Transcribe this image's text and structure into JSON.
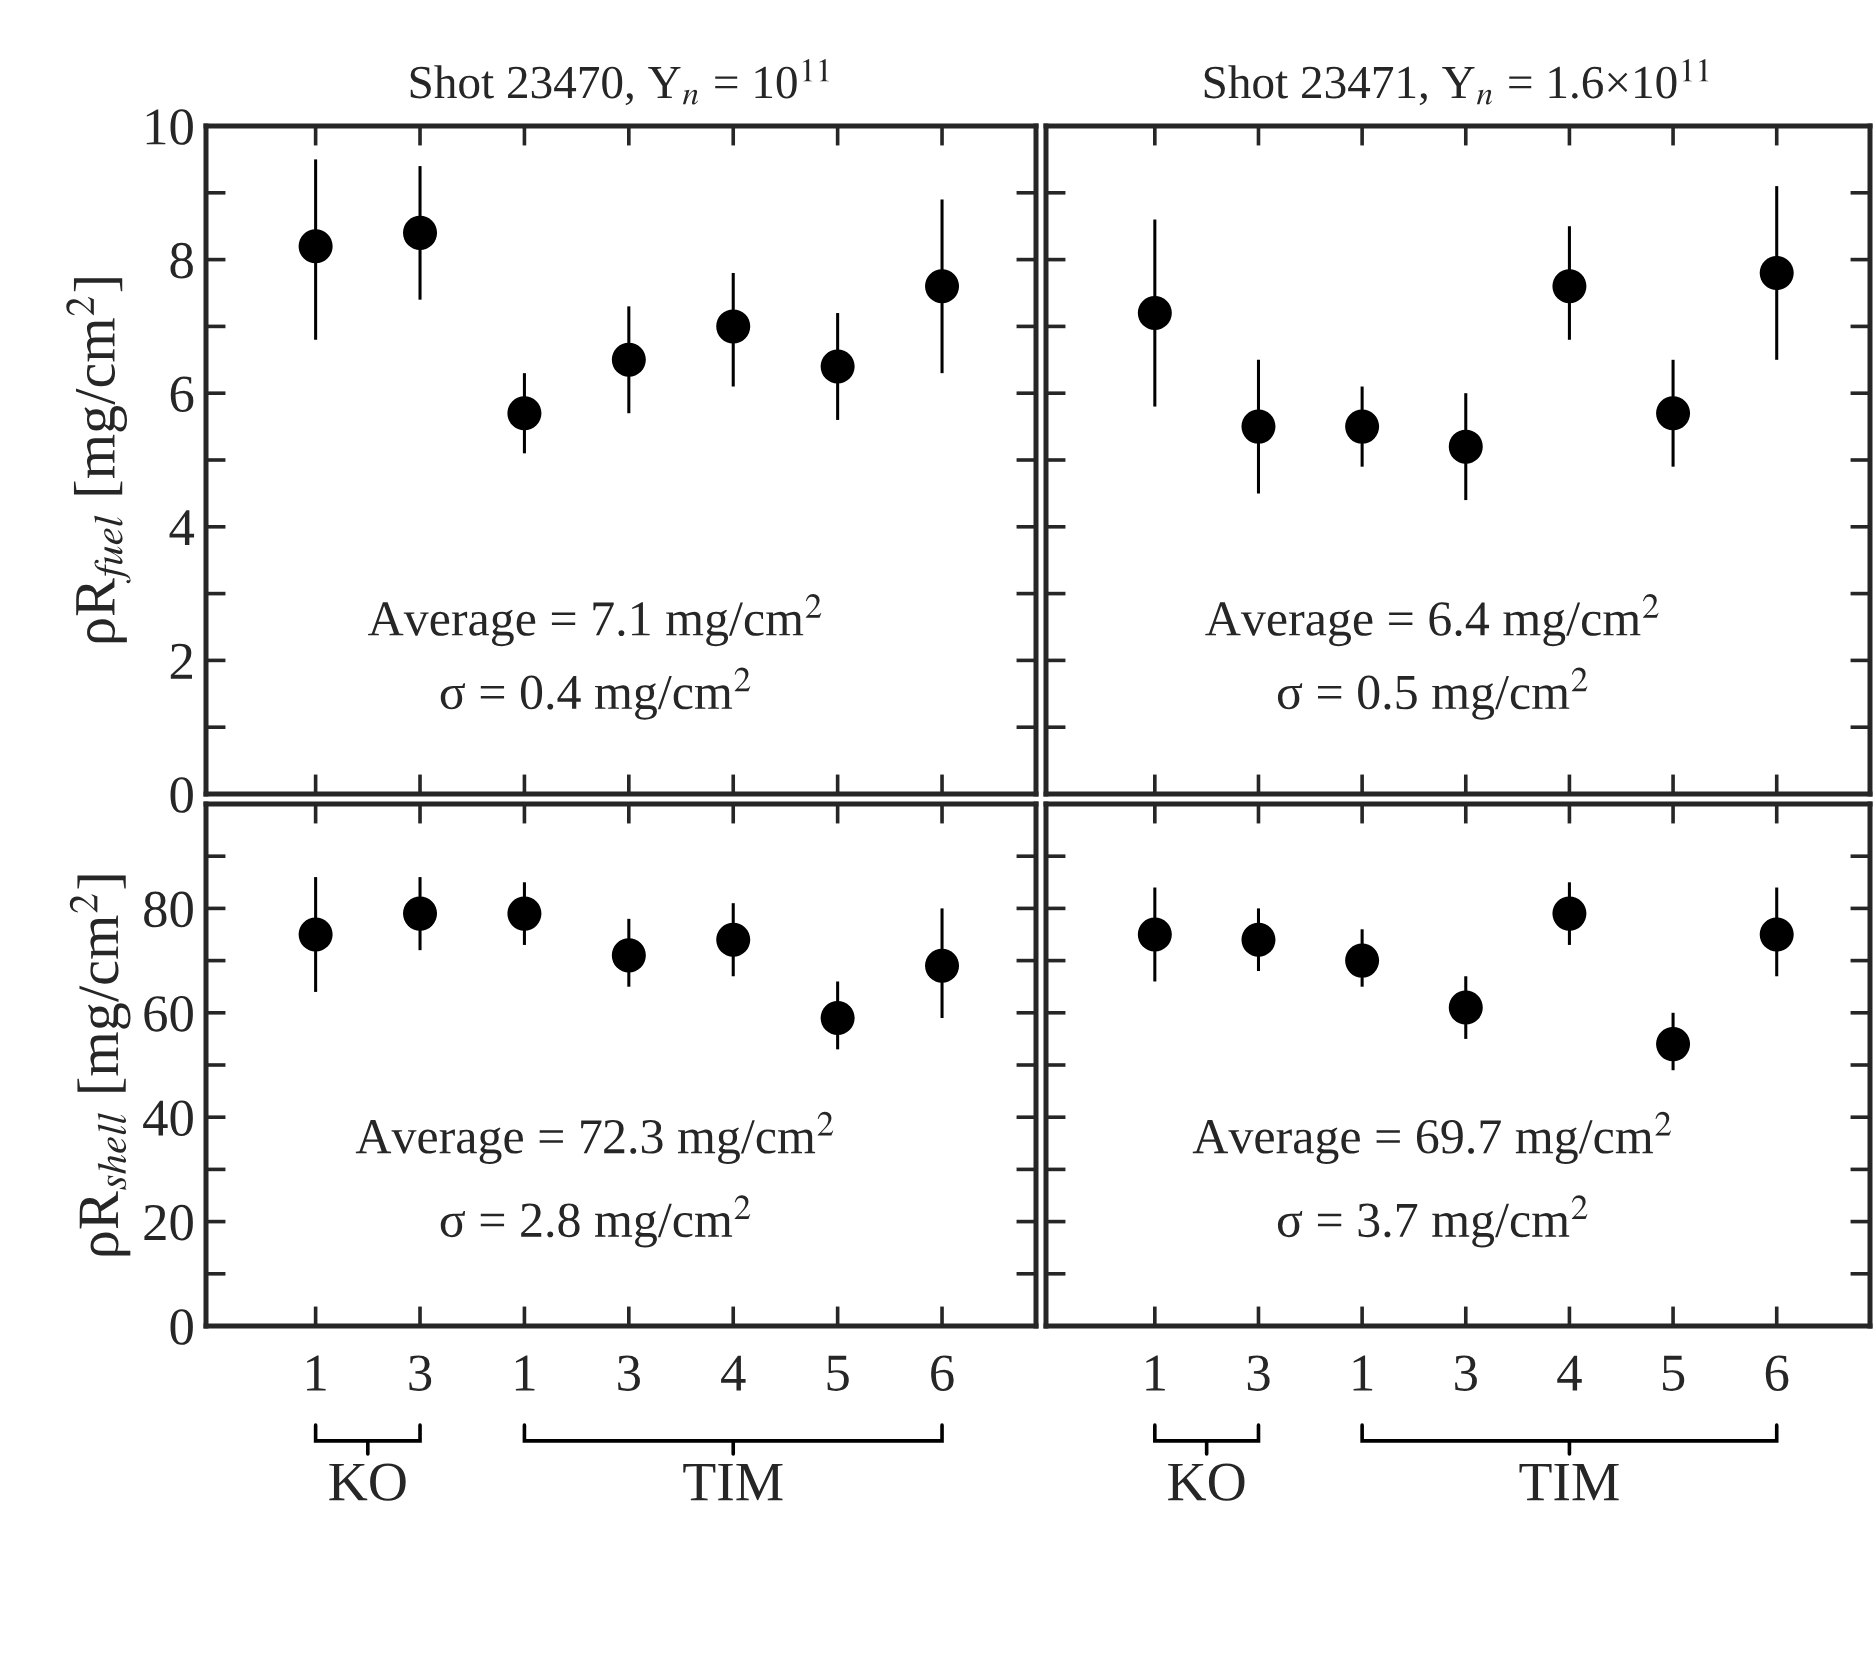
{
  "chart_data": [
    {
      "type": "scatter",
      "title": "Shot 23470, Y$_{n}$ = 10$^{11}$",
      "ylabel": "ρR$_{fuel}$ [mg/cm$^{2}$]",
      "categories": [
        "1",
        "3",
        "1",
        "3",
        "4",
        "5",
        "6"
      ],
      "series": [
        {
          "color": "#000000",
          "values": [
            8.2,
            8.4,
            5.7,
            6.5,
            7.0,
            6.4,
            7.6
          ],
          "errors": [
            [
              6.8,
              9.5
            ],
            [
              7.4,
              9.4
            ],
            [
              5.1,
              6.3
            ],
            [
              5.7,
              7.3
            ],
            [
              6.1,
              7.8
            ],
            [
              5.6,
              7.2
            ],
            [
              6.3,
              8.9
            ]
          ]
        }
      ],
      "ylim": [
        0,
        10
      ],
      "yticks": [
        0,
        {
          "value": 1,
          "label": null
        },
        2,
        {
          "value": 3,
          "label": null
        },
        4,
        {
          "value": 5,
          "label": null
        },
        6,
        {
          "value": 7,
          "label": null
        },
        8,
        {
          "value": 9,
          "label": null
        },
        10
      ],
      "marker": "circle",
      "tick_labels": "y",
      "annotations": [
        "Average = 7.1 mg/cm$^{2}$",
        "σ = 0.4 mg/cm$^{2}$"
      ]
    },
    {
      "type": "scatter",
      "title": "Shot 23471, Y$_{n}$ = 1.6×10$^{11}$",
      "categories": [
        "1",
        "3",
        "1",
        "3",
        "4",
        "5",
        "6"
      ],
      "series": [
        {
          "color": "#000000",
          "values": [
            7.2,
            5.5,
            5.5,
            5.2,
            7.6,
            5.7,
            7.8
          ],
          "errors": [
            [
              5.8,
              8.6
            ],
            [
              4.5,
              6.5
            ],
            [
              4.9,
              6.1
            ],
            [
              4.4,
              6.0
            ],
            [
              6.8,
              8.5
            ],
            [
              4.9,
              6.5
            ],
            [
              6.5,
              9.1
            ]
          ]
        }
      ],
      "ylim": [
        0,
        10
      ],
      "yticks": [
        {
          "value": 0,
          "label": null
        },
        {
          "value": 1,
          "label": null
        },
        {
          "value": 2,
          "label": null
        },
        {
          "value": 3,
          "label": null
        },
        {
          "value": 4,
          "label": null
        },
        {
          "value": 5,
          "label": null
        },
        {
          "value": 6,
          "label": null
        },
        {
          "value": 7,
          "label": null
        },
        {
          "value": 8,
          "label": null
        },
        {
          "value": 9,
          "label": null
        },
        {
          "value": 10,
          "label": null
        }
      ],
      "marker": "circle",
      "tick_labels": false,
      "annotations": [
        "Average = 6.4 mg/cm$^{2}$",
        "σ = 0.5 mg/cm$^{2}$"
      ]
    },
    {
      "type": "scatter",
      "ylabel": "ρR$_{shell}$ [mg/cm$^{2}$]",
      "categories": [
        "1",
        "3",
        "1",
        "3",
        "4",
        "5",
        "6"
      ],
      "series": [
        {
          "color": "#000000",
          "values": [
            75,
            79,
            79,
            71,
            74,
            59,
            69
          ],
          "errors": [
            [
              64,
              86
            ],
            [
              72,
              86
            ],
            [
              73,
              85
            ],
            [
              65,
              78
            ],
            [
              67,
              81
            ],
            [
              53,
              66
            ],
            [
              59,
              80
            ]
          ]
        }
      ],
      "ylim": [
        0,
        100
      ],
      "yticks": [
        0,
        {
          "value": 10,
          "label": null
        },
        20,
        {
          "value": 30,
          "label": null
        },
        40,
        {
          "value": 50,
          "label": null
        },
        60,
        {
          "value": 70,
          "label": null
        },
        80,
        {
          "value": 90,
          "label": null
        }
      ],
      "marker": "circle",
      "annotations": [
        "Average = 72.3 mg/cm$^{2}$",
        "σ = 2.8 mg/cm$^{2}$",
        "KO",
        "TIM"
      ]
    },
    {
      "type": "scatter",
      "categories": [
        "1",
        "3",
        "1",
        "3",
        "4",
        "5",
        "6"
      ],
      "series": [
        {
          "color": "#000000",
          "values": [
            75,
            74,
            70,
            61,
            79,
            54,
            75
          ],
          "errors": [
            [
              66,
              84
            ],
            [
              68,
              80
            ],
            [
              65,
              76
            ],
            [
              55,
              67
            ],
            [
              73,
              85
            ],
            [
              49,
              60
            ],
            [
              67,
              84
            ]
          ]
        }
      ],
      "ylim": [
        0,
        100
      ],
      "yticks": [
        {
          "value": 0,
          "label": null
        },
        {
          "value": 10,
          "label": null
        },
        {
          "value": 20,
          "label": null
        },
        {
          "value": 30,
          "label": null
        },
        {
          "value": 40,
          "label": null
        },
        {
          "value": 50,
          "label": null
        },
        {
          "value": 60,
          "label": null
        },
        {
          "value": 70,
          "label": null
        },
        {
          "value": 80,
          "label": null
        },
        {
          "value": 90,
          "label": null
        }
      ],
      "marker": "circle",
      "tick_labels": "x",
      "annotations": [
        "Average = 69.7 mg/cm$^{2}$",
        "σ = 3.7 mg/cm$^{2}$",
        "KO",
        "TIM"
      ]
    }
  ]
}
